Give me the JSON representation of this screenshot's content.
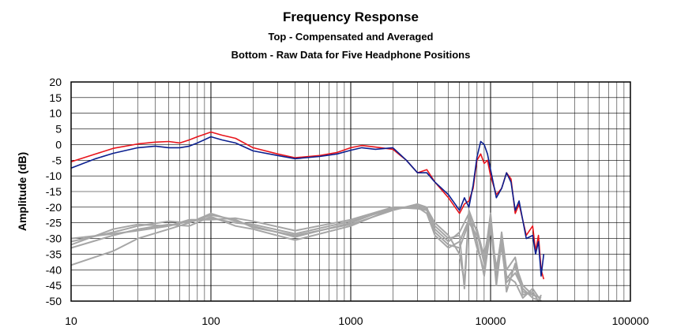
{
  "chart_data": {
    "type": "line",
    "title": "Frequency Response",
    "subtitle": [
      "Top -  Compensated and Averaged",
      "Bottom - Raw Data for Five Headphone Positions"
    ],
    "xlabel": "",
    "ylabel": "Amplitude (dB)",
    "xscale": "log",
    "xlim": [
      10,
      100000
    ],
    "ylim": [
      -50,
      20
    ],
    "x_ticks": [
      "10",
      "100",
      "1000",
      "10000",
      "100000"
    ],
    "y_ticks": [
      "20",
      "15",
      "10",
      "5",
      "0",
      "-5",
      "-10",
      "-15",
      "-20",
      "-25",
      "-30",
      "-35",
      "-40",
      "-45",
      "-50"
    ],
    "grid": true,
    "legend": "none",
    "series": [
      {
        "color": "#e8141b",
        "points": [
          [
            10,
            -5.5
          ],
          [
            15,
            -3
          ],
          [
            20,
            -1.2
          ],
          [
            30,
            0.2
          ],
          [
            40,
            0.8
          ],
          [
            50,
            1
          ],
          [
            60,
            0.5
          ],
          [
            70,
            1.5
          ],
          [
            80,
            2.5
          ],
          [
            100,
            4
          ],
          [
            120,
            3
          ],
          [
            150,
            2
          ],
          [
            200,
            -1
          ],
          [
            300,
            -3
          ],
          [
            400,
            -4.2
          ],
          [
            600,
            -3.5
          ],
          [
            800,
            -2.5
          ],
          [
            1000,
            -1
          ],
          [
            1200,
            -0.3
          ],
          [
            1500,
            -0.8
          ],
          [
            2000,
            -1.5
          ],
          [
            2500,
            -5
          ],
          [
            3000,
            -9
          ],
          [
            3500,
            -8
          ],
          [
            4000,
            -12
          ],
          [
            5000,
            -17
          ],
          [
            6000,
            -22
          ],
          [
            6500,
            -19
          ],
          [
            7000,
            -18
          ],
          [
            7500,
            -14
          ],
          [
            8000,
            -5
          ],
          [
            8500,
            -3
          ],
          [
            9000,
            -6
          ],
          [
            9500,
            -5
          ],
          [
            10000,
            -10
          ],
          [
            11000,
            -16
          ],
          [
            12000,
            -14
          ],
          [
            13000,
            -9
          ],
          [
            14000,
            -11
          ],
          [
            15000,
            -22
          ],
          [
            16000,
            -19
          ],
          [
            18000,
            -29
          ],
          [
            20000,
            -26
          ],
          [
            21000,
            -34
          ],
          [
            22000,
            -29
          ],
          [
            23000,
            -40
          ],
          [
            24000,
            -43
          ]
        ]
      },
      {
        "color": "#0b1f8f",
        "points": [
          [
            10,
            -7.5
          ],
          [
            15,
            -4.5
          ],
          [
            20,
            -2.8
          ],
          [
            30,
            -1
          ],
          [
            40,
            -0.5
          ],
          [
            50,
            -1
          ],
          [
            60,
            -1
          ],
          [
            70,
            -0.5
          ],
          [
            80,
            0.5
          ],
          [
            100,
            2.5
          ],
          [
            120,
            1.5
          ],
          [
            150,
            0.5
          ],
          [
            200,
            -2
          ],
          [
            300,
            -3.5
          ],
          [
            400,
            -4.5
          ],
          [
            600,
            -3.8
          ],
          [
            800,
            -3
          ],
          [
            1000,
            -1.8
          ],
          [
            1200,
            -1
          ],
          [
            1500,
            -1.5
          ],
          [
            2000,
            -1
          ],
          [
            2500,
            -5
          ],
          [
            3000,
            -9
          ],
          [
            3500,
            -9
          ],
          [
            4000,
            -12
          ],
          [
            5000,
            -16
          ],
          [
            6000,
            -21
          ],
          [
            6500,
            -17
          ],
          [
            7000,
            -20
          ],
          [
            7500,
            -13
          ],
          [
            8000,
            -4
          ],
          [
            8500,
            1
          ],
          [
            9000,
            0
          ],
          [
            9500,
            -3
          ],
          [
            10000,
            -8
          ],
          [
            11000,
            -17
          ],
          [
            12000,
            -14
          ],
          [
            13000,
            -9
          ],
          [
            14000,
            -12
          ],
          [
            15000,
            -21
          ],
          [
            16000,
            -18
          ],
          [
            18000,
            -30
          ],
          [
            20000,
            -29
          ],
          [
            21000,
            -35
          ],
          [
            22000,
            -31
          ],
          [
            23000,
            -42
          ],
          [
            24000,
            -35
          ]
        ]
      },
      {
        "color": "#a6a6a6",
        "points": [
          [
            10,
            -33
          ],
          [
            20,
            -29
          ],
          [
            30,
            -27
          ],
          [
            50,
            -25.5
          ],
          [
            70,
            -26
          ],
          [
            100,
            -23
          ],
          [
            150,
            -26
          ],
          [
            200,
            -27
          ],
          [
            400,
            -30.5
          ],
          [
            1000,
            -26
          ],
          [
            2000,
            -20.5
          ],
          [
            3000,
            -20
          ],
          [
            3500,
            -22
          ],
          [
            4000,
            -29
          ],
          [
            5000,
            -33
          ],
          [
            6000,
            -31
          ],
          [
            7000,
            -24
          ],
          [
            8000,
            -27
          ],
          [
            9000,
            -36
          ],
          [
            10000,
            -24
          ],
          [
            11000,
            -44
          ],
          [
            12000,
            -28
          ],
          [
            13000,
            -40
          ],
          [
            15000,
            -36
          ],
          [
            17000,
            -48
          ],
          [
            20000,
            -47
          ],
          [
            22000,
            -50
          ],
          [
            23000,
            -48
          ]
        ]
      },
      {
        "color": "#a6a6a6",
        "points": [
          [
            10,
            -31
          ],
          [
            20,
            -28
          ],
          [
            30,
            -26
          ],
          [
            50,
            -24.5
          ],
          [
            70,
            -25
          ],
          [
            100,
            -22
          ],
          [
            150,
            -24.5
          ],
          [
            200,
            -26
          ],
          [
            400,
            -29.5
          ],
          [
            1000,
            -25
          ],
          [
            2000,
            -20
          ],
          [
            3000,
            -20
          ],
          [
            3500,
            -21
          ],
          [
            4000,
            -27
          ],
          [
            5000,
            -31
          ],
          [
            6000,
            -28
          ],
          [
            7000,
            -22
          ],
          [
            8000,
            -31
          ],
          [
            9000,
            -42
          ],
          [
            10000,
            -27
          ],
          [
            11000,
            -39
          ],
          [
            12000,
            -33
          ],
          [
            13000,
            -44
          ],
          [
            15000,
            -41
          ],
          [
            17000,
            -46
          ],
          [
            20000,
            -49
          ],
          [
            23000,
            -50
          ]
        ]
      },
      {
        "color": "#a6a6a6",
        "points": [
          [
            10,
            -32
          ],
          [
            20,
            -27
          ],
          [
            30,
            -25.5
          ],
          [
            50,
            -26
          ],
          [
            70,
            -24.5
          ],
          [
            100,
            -23.5
          ],
          [
            150,
            -25
          ],
          [
            200,
            -25.5
          ],
          [
            400,
            -28.5
          ],
          [
            1000,
            -24.5
          ],
          [
            2000,
            -20.5
          ],
          [
            3000,
            -19.5
          ],
          [
            3500,
            -20.5
          ],
          [
            4000,
            -25
          ],
          [
            5000,
            -29
          ],
          [
            6000,
            -35
          ],
          [
            6500,
            -44
          ],
          [
            7000,
            -21
          ],
          [
            8000,
            -28
          ],
          [
            9000,
            -38
          ],
          [
            10000,
            -22
          ],
          [
            11000,
            -42
          ],
          [
            12000,
            -30
          ],
          [
            13000,
            -47
          ],
          [
            15000,
            -38
          ],
          [
            17000,
            -45
          ],
          [
            20000,
            -48
          ],
          [
            23000,
            -49
          ]
        ]
      },
      {
        "color": "#a6a6a6",
        "points": [
          [
            10,
            -30
          ],
          [
            20,
            -28.5
          ],
          [
            30,
            -27.5
          ],
          [
            50,
            -26
          ],
          [
            70,
            -24
          ],
          [
            100,
            -24
          ],
          [
            150,
            -23.5
          ],
          [
            200,
            -24.5
          ],
          [
            400,
            -27.5
          ],
          [
            1000,
            -24
          ],
          [
            2000,
            -20
          ],
          [
            3000,
            -20.5
          ],
          [
            3500,
            -21
          ],
          [
            4000,
            -26
          ],
          [
            5000,
            -30
          ],
          [
            6000,
            -29
          ],
          [
            6500,
            -46
          ],
          [
            7000,
            -23
          ],
          [
            8000,
            -33
          ],
          [
            9000,
            -40
          ],
          [
            10000,
            -25
          ],
          [
            11000,
            -45
          ],
          [
            12000,
            -31
          ],
          [
            13000,
            -42
          ],
          [
            15000,
            -44
          ],
          [
            17000,
            -49
          ],
          [
            20000,
            -46
          ],
          [
            23000,
            -50
          ]
        ]
      },
      {
        "color": "#a6a6a6",
        "points": [
          [
            10,
            -38.5
          ],
          [
            20,
            -34
          ],
          [
            30,
            -30
          ],
          [
            50,
            -27
          ],
          [
            70,
            -25
          ],
          [
            100,
            -22.5
          ],
          [
            150,
            -24
          ],
          [
            200,
            -26.5
          ],
          [
            400,
            -29
          ],
          [
            1000,
            -25.5
          ],
          [
            2000,
            -21
          ],
          [
            3000,
            -19
          ],
          [
            3500,
            -20
          ],
          [
            4000,
            -28
          ],
          [
            5000,
            -32
          ],
          [
            6000,
            -33
          ],
          [
            7000,
            -25
          ],
          [
            8000,
            -29
          ],
          [
            9000,
            -35
          ],
          [
            10000,
            -26
          ],
          [
            11000,
            -40
          ],
          [
            12000,
            -29
          ],
          [
            13000,
            -43
          ],
          [
            15000,
            -39
          ],
          [
            17000,
            -47
          ],
          [
            20000,
            -48
          ],
          [
            23000,
            -49
          ]
        ]
      }
    ]
  }
}
